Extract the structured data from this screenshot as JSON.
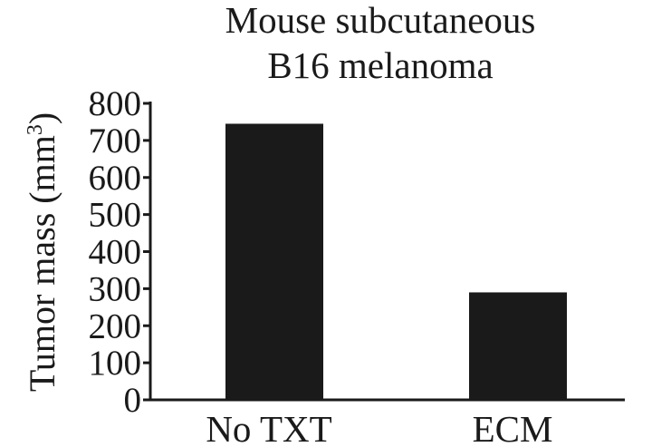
{
  "chart_data": {
    "type": "bar",
    "title_lines": [
      "Mouse subcutaneous",
      "B16 melanoma"
    ],
    "ylabel": "Tumor mass (mm",
    "ylabel_superscript": "3",
    "ylabel_suffix": ")",
    "categories": [
      "No TXT",
      "ECM"
    ],
    "values": [
      745,
      290
    ],
    "ylim": [
      0,
      800
    ],
    "yticks": [
      0,
      100,
      200,
      300,
      400,
      500,
      600,
      700,
      800
    ],
    "bar_color": "#1a1a1a",
    "grid": false
  }
}
